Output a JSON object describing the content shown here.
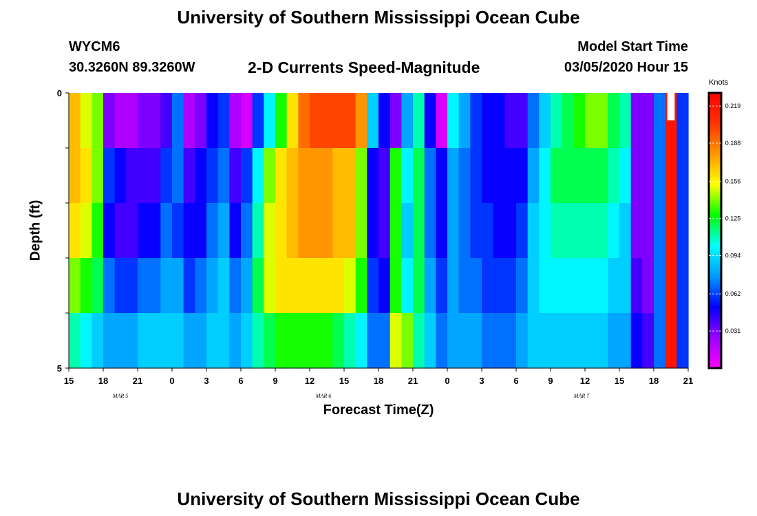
{
  "title": "University of Southern Mississippi Ocean Cube",
  "footer_title": "University of Southern Mississippi Ocean Cube",
  "station": "WYCM6",
  "coords": "30.3260N 89.3260W",
  "subtitle": "2-D Currents Speed-Magnitude",
  "model_start_label": "Model Start Time",
  "model_start_value": "03/05/2020 Hour 15",
  "colors": {
    "scale": [
      "#ff00ff",
      "#9900ff",
      "#0000ff",
      "#0099ff",
      "#00ffff",
      "#00ff00",
      "#ffff00",
      "#ff9900",
      "#ff3300",
      "#ff0000"
    ]
  },
  "chart_data": {
    "type": "heatmap",
    "xlabel": "Forecast Time(Z)",
    "ylabel": "Depth (ft)",
    "x_ticks": [
      "15",
      "18",
      "21",
      "0",
      "3",
      "6",
      "9",
      "12",
      "15",
      "18",
      "21",
      "0",
      "3",
      "6",
      "9",
      "12",
      "15",
      "18",
      "21"
    ],
    "date_labels": [
      {
        "text": "MAR 5",
        "tick_index": 1
      },
      {
        "text": "MAR 6",
        "tick_index": 6.9
      },
      {
        "text": "MAR 7",
        "tick_index": 14.4
      }
    ],
    "y_ticks": [
      "0",
      "5"
    ],
    "ylim": [
      0,
      5
    ],
    "colorbar": {
      "title": "Knots",
      "ticks": [
        "0.219",
        "0.188",
        "0.156",
        "0.125",
        "0.094",
        "0.062",
        "0.031"
      ],
      "range": [
        0,
        0.23
      ]
    },
    "hours": 54,
    "depth_rows": 5,
    "values": [
      [
        0.17,
        0.15,
        0.14,
        0.03,
        0.02,
        0.02,
        0.03,
        0.03,
        0.04,
        0.07,
        0.02,
        0.03,
        0.05,
        0.06,
        0.02,
        0.01,
        0.06,
        0.1,
        0.13,
        0.16,
        0.19,
        0.2,
        0.2,
        0.2,
        0.2,
        0.18,
        0.09,
        0.05,
        0.03,
        0.08,
        0.11,
        0.05,
        0.01,
        0.1,
        0.08,
        0.06,
        0.05,
        0.05,
        0.04,
        0.04,
        0.07,
        0.09,
        0.11,
        0.12,
        0.13,
        0.14,
        0.14,
        0.12,
        0.11,
        0.03,
        0.03,
        0.07,
        0.22,
        0.06
      ],
      [
        0.17,
        0.16,
        0.14,
        0.06,
        0.05,
        0.04,
        0.04,
        0.04,
        0.06,
        0.07,
        0.04,
        0.05,
        0.06,
        0.07,
        0.04,
        0.06,
        0.1,
        0.14,
        0.16,
        0.17,
        0.18,
        0.18,
        0.18,
        0.17,
        0.17,
        0.14,
        0.05,
        0.04,
        0.13,
        0.1,
        0.12,
        0.07,
        0.05,
        0.08,
        0.07,
        0.06,
        0.05,
        0.05,
        0.05,
        0.05,
        0.08,
        0.1,
        0.12,
        0.12,
        0.12,
        0.12,
        0.12,
        0.11,
        0.1,
        0.03,
        0.03,
        0.07,
        0.22,
        0.06
      ],
      [
        0.16,
        0.15,
        0.13,
        0.05,
        0.04,
        0.04,
        0.05,
        0.05,
        0.07,
        0.06,
        0.05,
        0.05,
        0.07,
        0.08,
        0.05,
        0.07,
        0.11,
        0.15,
        0.16,
        0.17,
        0.18,
        0.18,
        0.18,
        0.17,
        0.17,
        0.14,
        0.05,
        0.04,
        0.13,
        0.09,
        0.12,
        0.07,
        0.05,
        0.08,
        0.07,
        0.06,
        0.06,
        0.05,
        0.05,
        0.06,
        0.09,
        0.1,
        0.11,
        0.11,
        0.11,
        0.11,
        0.11,
        0.1,
        0.09,
        0.03,
        0.03,
        0.07,
        0.22,
        0.06
      ],
      [
        0.14,
        0.13,
        0.12,
        0.07,
        0.06,
        0.06,
        0.07,
        0.07,
        0.08,
        0.08,
        0.06,
        0.07,
        0.08,
        0.09,
        0.07,
        0.08,
        0.12,
        0.15,
        0.16,
        0.16,
        0.16,
        0.16,
        0.16,
        0.16,
        0.15,
        0.13,
        0.06,
        0.05,
        0.13,
        0.1,
        0.12,
        0.08,
        0.06,
        0.08,
        0.07,
        0.07,
        0.06,
        0.06,
        0.06,
        0.07,
        0.09,
        0.1,
        0.1,
        0.1,
        0.1,
        0.1,
        0.1,
        0.09,
        0.09,
        0.04,
        0.03,
        0.07,
        0.22,
        0.06
      ],
      [
        0.11,
        0.1,
        0.09,
        0.08,
        0.08,
        0.08,
        0.09,
        0.09,
        0.09,
        0.09,
        0.08,
        0.08,
        0.09,
        0.09,
        0.08,
        0.09,
        0.11,
        0.12,
        0.13,
        0.13,
        0.13,
        0.13,
        0.13,
        0.12,
        0.11,
        0.1,
        0.07,
        0.07,
        0.15,
        0.14,
        0.11,
        0.09,
        0.07,
        0.08,
        0.08,
        0.08,
        0.07,
        0.07,
        0.07,
        0.08,
        0.09,
        0.09,
        0.09,
        0.09,
        0.09,
        0.09,
        0.09,
        0.08,
        0.08,
        0.05,
        0.04,
        0.07,
        0.22,
        0.06
      ]
    ]
  }
}
